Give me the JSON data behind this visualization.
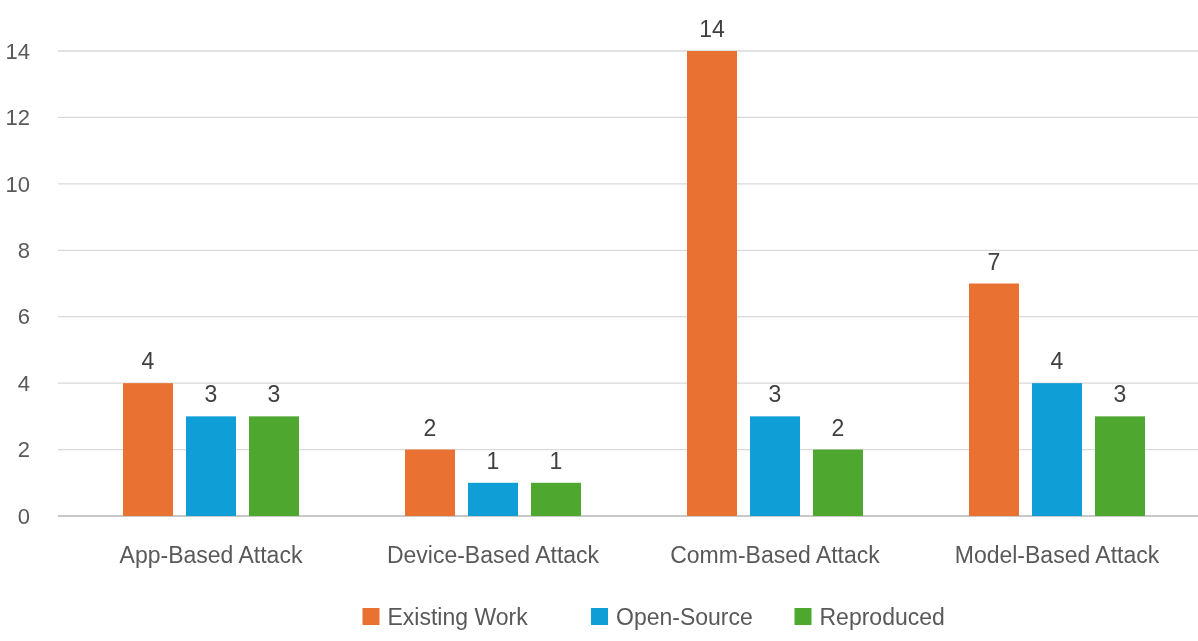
{
  "chart_data": {
    "type": "bar",
    "categories": [
      "App-Based Attack",
      "Device-Based Attack",
      "Comm-Based Attack",
      "Model-Based Attack"
    ],
    "series": [
      {
        "name": "Existing Work",
        "color": "#e97132",
        "values": [
          4,
          2,
          14,
          7
        ]
      },
      {
        "name": "Open-Source",
        "color": "#0f9ed5",
        "values": [
          3,
          1,
          3,
          4
        ]
      },
      {
        "name": "Reproduced",
        "color": "#4ea72e",
        "values": [
          3,
          1,
          2,
          3
        ]
      }
    ],
    "ylim": [
      0,
      14
    ],
    "yticks": [
      0,
      2,
      4,
      6,
      8,
      10,
      12,
      14
    ],
    "grid": "y",
    "legend": "bottom",
    "data_labels": true
  }
}
